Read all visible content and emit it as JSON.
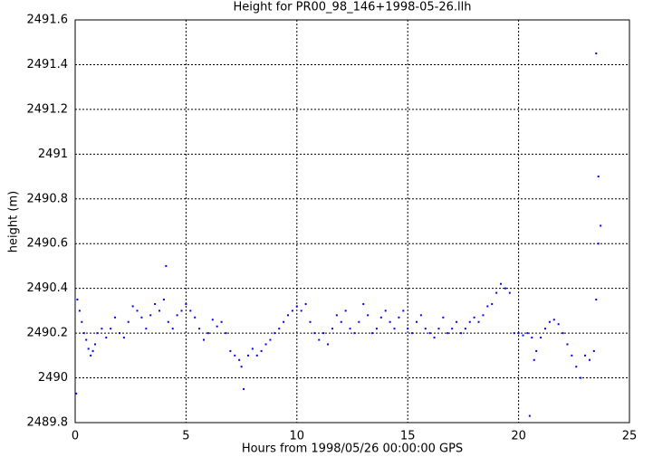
{
  "chart_data": {
    "type": "scatter",
    "title": "Height for PR00_98_146+1998-05-26.llh",
    "x_label": "Hours from 1998/05/26 00:00:00 GPS",
    "y_label": "height (m)",
    "xlim": [
      0,
      25
    ],
    "xticks": [
      0,
      5,
      10,
      15,
      20,
      25
    ],
    "ylim": [
      2489.8,
      2491.6
    ],
    "yticks": [
      2489.8,
      2490,
      2490.2,
      2490.4,
      2490.6,
      2490.8,
      2491,
      2491.2,
      2491.4,
      2491.6
    ],
    "grid": true,
    "series": [
      {
        "color": "#0000ff",
        "x": [
          0.05,
          0.1,
          0.2,
          0.3,
          0.4,
          0.5,
          0.6,
          0.7,
          0.8,
          0.9,
          1.0,
          1.2,
          1.4,
          1.6,
          1.8,
          2.0,
          2.2,
          2.4,
          2.6,
          2.8,
          3.0,
          3.2,
          3.4,
          3.6,
          3.8,
          4.0,
          4.1,
          4.2,
          4.4,
          4.6,
          4.8,
          5.0,
          5.2,
          5.4,
          5.6,
          5.8,
          6.0,
          6.2,
          6.4,
          6.6,
          6.8,
          7.0,
          7.2,
          7.4,
          7.5,
          7.6,
          7.8,
          8.0,
          8.2,
          8.4,
          8.6,
          8.8,
          9.0,
          9.2,
          9.4,
          9.6,
          9.8,
          10.0,
          10.2,
          10.4,
          10.6,
          10.8,
          11.0,
          11.2,
          11.4,
          11.6,
          11.8,
          12.0,
          12.2,
          12.4,
          12.6,
          12.8,
          13.0,
          13.2,
          13.4,
          13.6,
          13.8,
          14.0,
          14.2,
          14.4,
          14.6,
          14.8,
          15.0,
          15.2,
          15.4,
          15.6,
          15.8,
          16.0,
          16.2,
          16.4,
          16.6,
          16.8,
          17.0,
          17.2,
          17.4,
          17.6,
          17.8,
          18.0,
          18.2,
          18.4,
          18.6,
          18.8,
          19.0,
          19.2,
          19.4,
          19.6,
          19.8,
          20.0,
          20.2,
          20.4,
          20.5,
          20.6,
          20.7,
          20.8,
          21.0,
          21.2,
          21.4,
          21.6,
          21.8,
          22.0,
          22.2,
          22.4,
          22.6,
          22.8,
          23.0,
          23.2,
          23.4,
          23.5,
          23.5,
          23.6,
          23.6,
          23.7
        ],
        "values": [
          2489.93,
          2490.35,
          2490.3,
          2490.25,
          2490.2,
          2490.17,
          2490.13,
          2490.1,
          2490.12,
          2490.15,
          2490.2,
          2490.22,
          2490.18,
          2490.22,
          2490.27,
          2490.2,
          2490.18,
          2490.25,
          2490.32,
          2490.3,
          2490.27,
          2490.22,
          2490.28,
          2490.33,
          2490.3,
          2490.35,
          2490.5,
          2490.25,
          2490.22,
          2490.28,
          2490.3,
          2490.33,
          2490.3,
          2490.27,
          2490.22,
          2490.17,
          2490.2,
          2490.26,
          2490.23,
          2490.25,
          2490.2,
          2490.12,
          2490.1,
          2490.08,
          2490.05,
          2489.95,
          2490.1,
          2490.13,
          2490.1,
          2490.12,
          2490.15,
          2490.17,
          2490.2,
          2490.22,
          2490.25,
          2490.28,
          2490.3,
          2490.32,
          2490.3,
          2490.33,
          2490.25,
          2490.2,
          2490.17,
          2490.2,
          2490.15,
          2490.22,
          2490.28,
          2490.25,
          2490.3,
          2490.22,
          2490.2,
          2490.25,
          2490.33,
          2490.28,
          2490.2,
          2490.22,
          2490.27,
          2490.3,
          2490.25,
          2490.22,
          2490.27,
          2490.3,
          2490.22,
          2490.2,
          2490.25,
          2490.28,
          2490.22,
          2490.2,
          2490.18,
          2490.22,
          2490.27,
          2490.2,
          2490.22,
          2490.25,
          2490.2,
          2490.22,
          2490.25,
          2490.27,
          2490.25,
          2490.28,
          2490.32,
          2490.33,
          2490.38,
          2490.42,
          2490.4,
          2490.38,
          2490.2,
          2490.2,
          2490.19,
          2490.2,
          2489.83,
          2490.18,
          2490.08,
          2490.12,
          2490.18,
          2490.22,
          2490.25,
          2490.26,
          2490.24,
          2490.2,
          2490.15,
          2490.1,
          2490.05,
          2490.0,
          2490.1,
          2490.08,
          2490.12,
          2490.35,
          2491.45,
          2490.6,
          2490.9,
          2490.68
        ]
      }
    ]
  }
}
